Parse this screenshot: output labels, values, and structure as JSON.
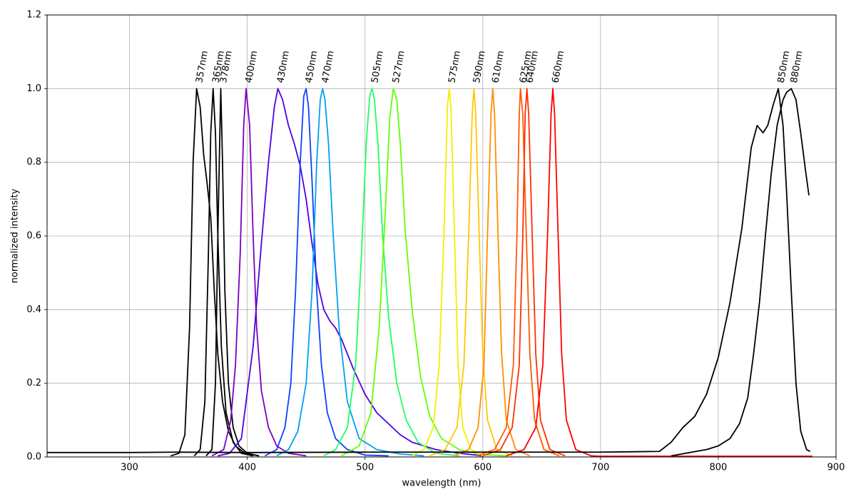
{
  "chart_data": {
    "type": "line",
    "xlabel": "wavelength (nm)",
    "ylabel": "normalized intensity",
    "xlim": [
      230,
      900
    ],
    "ylim": [
      0,
      1.2
    ],
    "xticks": [
      300,
      400,
      500,
      600,
      700,
      800,
      900
    ],
    "yticks": [
      {
        "value": 0,
        "label": "0.0"
      },
      {
        "value": 0.2,
        "label": "0.2"
      },
      {
        "value": 0.4,
        "label": "0.4"
      },
      {
        "value": 0.6,
        "label": "0.6"
      },
      {
        "value": 0.8,
        "label": "0.8"
      },
      {
        "value": 1.0,
        "label": "1.0"
      },
      {
        "value": 1.2,
        "label": "1.2"
      }
    ],
    "grid": true,
    "series": [
      {
        "name": "357nm",
        "color": "#000000",
        "x": [
          335,
          342,
          347,
          351,
          354,
          357,
          360,
          363,
          366,
          369,
          372,
          375,
          379,
          384,
          390,
          398,
          410
        ],
        "values": [
          0.003,
          0.01,
          0.06,
          0.35,
          0.8,
          1.0,
          0.95,
          0.82,
          0.74,
          0.65,
          0.45,
          0.28,
          0.15,
          0.07,
          0.03,
          0.01,
          0.003
        ]
      },
      {
        "name": "365nm",
        "color": "#000000",
        "x": [
          355,
          360,
          364,
          367,
          369,
          371,
          373,
          375,
          378,
          382,
          388,
          395,
          405
        ],
        "values": [
          0.003,
          0.02,
          0.15,
          0.55,
          0.88,
          1.0,
          0.88,
          0.6,
          0.3,
          0.12,
          0.04,
          0.01,
          0.003
        ]
      },
      {
        "name": "378nm",
        "color": "#000000",
        "x": [
          365,
          370,
          373,
          375,
          377.5,
          379,
          381,
          384,
          388,
          393,
          400,
          410
        ],
        "values": [
          0.003,
          0.02,
          0.2,
          0.6,
          1.0,
          0.8,
          0.45,
          0.2,
          0.08,
          0.03,
          0.01,
          0.003
        ]
      },
      {
        "name": "400nm",
        "color": "#7a00c0",
        "x": [
          370,
          380,
          386,
          390,
          394,
          397,
          399,
          402,
          405,
          408,
          412,
          418,
          425,
          435,
          450
        ],
        "values": [
          0.003,
          0.02,
          0.1,
          0.25,
          0.55,
          0.9,
          1.0,
          0.9,
          0.6,
          0.35,
          0.18,
          0.08,
          0.03,
          0.01,
          0.003
        ]
      },
      {
        "name": "430nm",
        "color": "#5000e0",
        "x": [
          375,
          385,
          395,
          405,
          412,
          418,
          423,
          426,
          430,
          435,
          440,
          445,
          450,
          455,
          460,
          465,
          470,
          475,
          480,
          490,
          500,
          510,
          520,
          530,
          540,
          550,
          560,
          580,
          600
        ],
        "values": [
          0.003,
          0.01,
          0.05,
          0.3,
          0.58,
          0.8,
          0.95,
          1.0,
          0.97,
          0.9,
          0.85,
          0.79,
          0.7,
          0.58,
          0.47,
          0.4,
          0.37,
          0.35,
          0.32,
          0.24,
          0.17,
          0.12,
          0.09,
          0.06,
          0.04,
          0.03,
          0.02,
          0.01,
          0.003
        ]
      },
      {
        "name": "450nm",
        "color": "#1040ff",
        "x": [
          415,
          425,
          432,
          437,
          441,
          445,
          448,
          450,
          452,
          455,
          459,
          463,
          468,
          475,
          485,
          500,
          520
        ],
        "values": [
          0.003,
          0.02,
          0.08,
          0.2,
          0.45,
          0.8,
          0.98,
          1.0,
          0.95,
          0.75,
          0.45,
          0.25,
          0.12,
          0.05,
          0.02,
          0.005,
          0.003
        ]
      },
      {
        "name": "470nm",
        "color": "#00a0f0",
        "x": [
          425,
          435,
          443,
          450,
          455,
          459,
          462,
          464,
          466,
          469,
          473,
          478,
          485,
          495,
          510,
          530,
          550
        ],
        "values": [
          0.003,
          0.02,
          0.07,
          0.2,
          0.45,
          0.8,
          0.97,
          1.0,
          0.97,
          0.85,
          0.6,
          0.35,
          0.15,
          0.05,
          0.02,
          0.008,
          0.003
        ]
      },
      {
        "name": "505nm",
        "color": "#20ff60",
        "x": [
          465,
          475,
          485,
          492,
          497,
          501,
          504,
          506,
          508,
          511,
          515,
          520,
          527,
          535,
          545,
          560,
          580
        ],
        "values": [
          0.003,
          0.02,
          0.08,
          0.25,
          0.55,
          0.85,
          0.98,
          1.0,
          0.97,
          0.85,
          0.6,
          0.38,
          0.2,
          0.1,
          0.04,
          0.01,
          0.003
        ]
      },
      {
        "name": "527nm",
        "color": "#60ff00",
        "x": [
          480,
          495,
          505,
          512,
          517,
          521,
          524,
          527,
          530,
          534,
          540,
          547,
          555,
          565,
          580,
          600,
          620
        ],
        "values": [
          0.003,
          0.03,
          0.12,
          0.35,
          0.65,
          0.92,
          1.0,
          0.97,
          0.85,
          0.62,
          0.4,
          0.22,
          0.11,
          0.05,
          0.02,
          0.006,
          0.003
        ]
      },
      {
        "name": "575nm",
        "color": "#f0f000",
        "x": [
          540,
          550,
          558,
          563,
          567,
          570,
          571.5,
          573,
          576,
          579,
          583,
          590,
          600
        ],
        "values": [
          0.003,
          0.02,
          0.08,
          0.25,
          0.6,
          0.95,
          1.0,
          0.95,
          0.6,
          0.25,
          0.08,
          0.02,
          0.003
        ]
      },
      {
        "name": "590nm",
        "color": "#ffc800",
        "x": [
          555,
          568,
          578,
          584,
          588,
          591,
          592.5,
          594,
          597,
          600,
          604,
          612,
          625
        ],
        "values": [
          0.003,
          0.02,
          0.08,
          0.25,
          0.6,
          0.93,
          1.0,
          0.93,
          0.6,
          0.28,
          0.1,
          0.02,
          0.003
        ]
      },
      {
        "name": "610nm",
        "color": "#ff9000",
        "x": [
          575,
          588,
          596,
          601,
          604,
          607,
          608.5,
          610,
          613,
          616,
          620,
          628,
          640
        ],
        "values": [
          0.003,
          0.02,
          0.08,
          0.25,
          0.6,
          0.93,
          1.0,
          0.93,
          0.6,
          0.28,
          0.1,
          0.02,
          0.003
        ]
      },
      {
        "name": "625nm",
        "color": "#ff5a00",
        "x": [
          595,
          610,
          620,
          626,
          629,
          631,
          632,
          634,
          637,
          640,
          644,
          652,
          665
        ],
        "values": [
          0.003,
          0.02,
          0.08,
          0.25,
          0.6,
          0.93,
          1.0,
          0.93,
          0.6,
          0.28,
          0.1,
          0.02,
          0.003
        ]
      },
      {
        "name": "640nm",
        "color": "#ff3000",
        "x": [
          600,
          615,
          625,
          631,
          634,
          636,
          637.5,
          639,
          642,
          645,
          649,
          657,
          670
        ],
        "values": [
          0.003,
          0.02,
          0.08,
          0.25,
          0.6,
          0.93,
          1.0,
          0.93,
          0.6,
          0.28,
          0.1,
          0.02,
          0.003
        ]
      },
      {
        "name": "660nm",
        "color": "#ff0000",
        "x": [
          620,
          635,
          645,
          651,
          655,
          658,
          659.5,
          661,
          664,
          667,
          671,
          679,
          692,
          700,
          880
        ],
        "values": [
          0.003,
          0.02,
          0.08,
          0.25,
          0.6,
          0.93,
          1.0,
          0.93,
          0.6,
          0.28,
          0.1,
          0.02,
          0.003,
          0.002,
          0.002
        ]
      },
      {
        "name": "850nm",
        "color": "#000000",
        "x": [
          230,
          300,
          340,
          400,
          500,
          600,
          700,
          750,
          760,
          770,
          780,
          790,
          800,
          810,
          820,
          828,
          833,
          838,
          842,
          847,
          851,
          855,
          858,
          862,
          866,
          870,
          875,
          878
        ],
        "values": [
          0.012,
          0.012,
          0.013,
          0.012,
          0.013,
          0.013,
          0.013,
          0.015,
          0.04,
          0.08,
          0.11,
          0.17,
          0.27,
          0.42,
          0.62,
          0.84,
          0.9,
          0.88,
          0.9,
          0.96,
          1.0,
          0.9,
          0.72,
          0.45,
          0.2,
          0.07,
          0.02,
          0.015
        ]
      },
      {
        "name": "880nm",
        "color": "#000000",
        "x": [
          760,
          790,
          800,
          810,
          818,
          825,
          830,
          835,
          840,
          845,
          850,
          855,
          858,
          862,
          866,
          870,
          874,
          877
        ],
        "values": [
          0.003,
          0.02,
          0.03,
          0.05,
          0.09,
          0.16,
          0.28,
          0.42,
          0.6,
          0.77,
          0.9,
          0.97,
          0.99,
          1.0,
          0.97,
          0.88,
          0.78,
          0.71
        ]
      }
    ]
  }
}
